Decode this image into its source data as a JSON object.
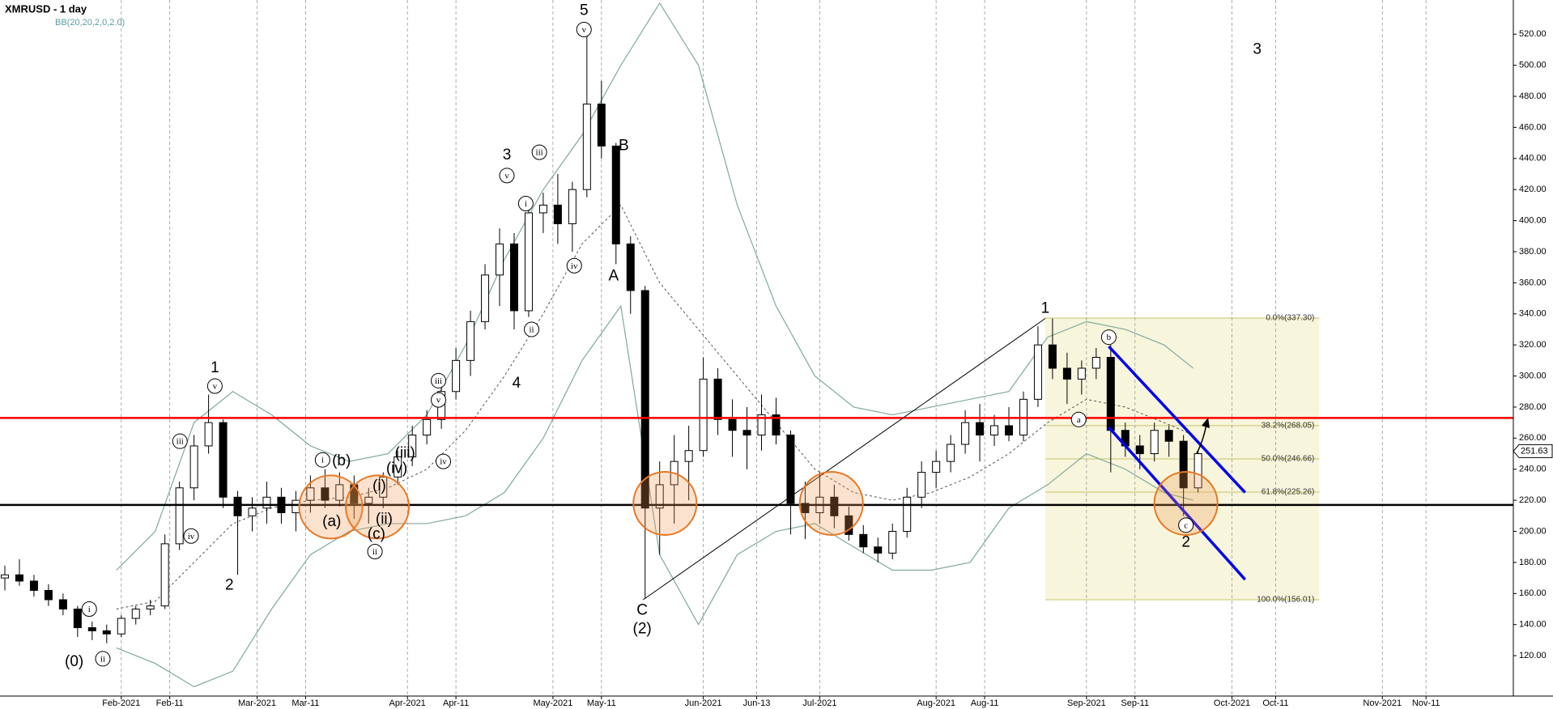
{
  "chart_data": {
    "type": "candlestick",
    "title": "XMRUSD - 1 day",
    "indicator": "BB(20,20,2,0,2.0)",
    "xlim": [
      0,
      312
    ],
    "ylim": [
      94,
      542
    ],
    "xticks": [
      {
        "value": 25,
        "label": "Feb-2021"
      },
      {
        "value": 35,
        "label": "Feb-11"
      },
      {
        "value": 53,
        "label": "Mar-2021"
      },
      {
        "value": 63,
        "label": "Mar-11"
      },
      {
        "value": 84,
        "label": "Apr-2021"
      },
      {
        "value": 94,
        "label": "Apr-11"
      },
      {
        "value": 114,
        "label": "May-2021"
      },
      {
        "value": 124,
        "label": "May-11"
      },
      {
        "value": 145,
        "label": "Jun-2021"
      },
      {
        "value": 156,
        "label": "Jun-13"
      },
      {
        "value": 169,
        "label": "Jul-2021"
      },
      {
        "value": 193,
        "label": "Aug-2021"
      },
      {
        "value": 203,
        "label": "Aug-11"
      },
      {
        "value": 224,
        "label": "Sep-2021"
      },
      {
        "value": 234,
        "label": "Sep-11"
      },
      {
        "value": 254,
        "label": "Oct-2021"
      },
      {
        "value": 263,
        "label": "Oct-11"
      },
      {
        "value": 285,
        "label": "Nov-2021"
      },
      {
        "value": 294,
        "label": "Nov-11"
      }
    ],
    "yticks": [
      {
        "value": 120,
        "label": "120.00"
      },
      {
        "value": 140,
        "label": "140.00"
      },
      {
        "value": 160,
        "label": "160.00"
      },
      {
        "value": 180,
        "label": "180.00"
      },
      {
        "value": 200,
        "label": "200.00"
      },
      {
        "value": 220,
        "label": "220.00"
      },
      {
        "value": 240,
        "label": "240.00"
      },
      {
        "value": 260,
        "label": "260.00"
      },
      {
        "value": 280,
        "label": "280.00"
      },
      {
        "value": 300,
        "label": "300.00"
      },
      {
        "value": 320,
        "label": "320.00"
      },
      {
        "value": 340,
        "label": "340.00"
      },
      {
        "value": 360,
        "label": "360.00"
      },
      {
        "value": 380,
        "label": "380.00"
      },
      {
        "value": 400,
        "label": "400.00"
      },
      {
        "value": 420,
        "label": "420.00"
      },
      {
        "value": 440,
        "label": "440.00"
      },
      {
        "value": 460,
        "label": "460.00"
      },
      {
        "value": 480,
        "label": "480.00"
      },
      {
        "value": 500,
        "label": "500.00"
      },
      {
        "value": 520,
        "label": "520.00"
      }
    ],
    "grid": true,
    "last_price": 251.63,
    "candles": {
      "up_color": "#ffffff",
      "down_color": "#000000",
      "x": [
        1,
        4,
        7,
        10,
        13,
        16,
        19,
        22,
        25,
        28,
        31,
        34,
        37,
        40,
        43,
        46,
        49,
        52,
        55,
        58,
        61,
        64,
        67,
        70,
        73,
        76,
        79,
        82,
        85,
        88,
        91,
        94,
        97,
        100,
        103,
        106,
        109,
        112,
        115,
        118,
        121,
        124,
        127,
        130,
        133,
        136,
        139,
        142,
        145,
        148,
        151,
        154,
        157,
        160,
        163,
        166,
        169,
        172,
        175,
        178,
        181,
        184,
        187,
        190,
        193,
        196,
        199,
        202,
        205,
        208,
        211,
        214,
        217,
        220,
        223,
        226,
        229,
        232,
        235,
        238,
        241,
        244,
        247
      ],
      "open": [
        170,
        172,
        168,
        162,
        156,
        150,
        138,
        136,
        134,
        144,
        150,
        152,
        192,
        228,
        255,
        270,
        222,
        210,
        215,
        222,
        212,
        220,
        228,
        220,
        230,
        218,
        222,
        235,
        248,
        262,
        272,
        290,
        310,
        335,
        365,
        385,
        342,
        405,
        410,
        398,
        420,
        475,
        448,
        385,
        355,
        215,
        230,
        245,
        252,
        298,
        272,
        265,
        262,
        275,
        262,
        218,
        212,
        222,
        210,
        198,
        190,
        186,
        200,
        222,
        238,
        245,
        256,
        270,
        262,
        268,
        262,
        285,
        320,
        305,
        298,
        305,
        312,
        265,
        255,
        250,
        265,
        258,
        228
      ],
      "high": [
        178,
        182,
        172,
        166,
        160,
        152,
        142,
        140,
        146,
        152,
        156,
        198,
        232,
        262,
        288,
        272,
        226,
        222,
        232,
        228,
        226,
        236,
        240,
        238,
        236,
        228,
        238,
        252,
        268,
        278,
        295,
        318,
        342,
        372,
        395,
        392,
        412,
        418,
        430,
        425,
        520,
        490,
        450,
        390,
        358,
        245,
        262,
        268,
        312,
        305,
        285,
        280,
        288,
        286,
        265,
        232,
        238,
        230,
        216,
        204,
        196,
        205,
        228,
        245,
        252,
        262,
        278,
        282,
        275,
        280,
        290,
        332,
        337,
        315,
        310,
        318,
        320,
        270,
        262,
        270,
        268,
        262,
        252
      ],
      "low": [
        162,
        165,
        158,
        152,
        146,
        132,
        130,
        128,
        132,
        140,
        146,
        150,
        188,
        220,
        250,
        215,
        172,
        200,
        205,
        205,
        200,
        212,
        215,
        216,
        208,
        205,
        215,
        230,
        242,
        256,
        266,
        285,
        300,
        330,
        345,
        330,
        338,
        392,
        385,
        380,
        415,
        440,
        372,
        340,
        157,
        185,
        205,
        220,
        248,
        262,
        248,
        240,
        252,
        256,
        198,
        195,
        205,
        202,
        194,
        186,
        180,
        182,
        196,
        215,
        228,
        238,
        250,
        245,
        255,
        258,
        258,
        280,
        298,
        282,
        288,
        298,
        238,
        248,
        240,
        245,
        248,
        210,
        225
      ],
      "close": [
        172,
        168,
        162,
        156,
        150,
        138,
        136,
        134,
        144,
        150,
        152,
        192,
        228,
        255,
        270,
        222,
        210,
        215,
        222,
        212,
        220,
        228,
        220,
        230,
        218,
        222,
        235,
        248,
        262,
        272,
        290,
        310,
        335,
        365,
        385,
        342,
        405,
        410,
        398,
        420,
        475,
        448,
        385,
        355,
        215,
        230,
        245,
        252,
        298,
        272,
        265,
        262,
        275,
        262,
        218,
        212,
        222,
        210,
        198,
        190,
        186,
        200,
        222,
        238,
        245,
        256,
        270,
        262,
        268,
        262,
        285,
        320,
        305,
        298,
        305,
        312,
        265,
        255,
        250,
        265,
        258,
        228,
        250
      ]
    },
    "bands": {
      "color": "#7fa99b",
      "x": [
        24,
        32,
        40,
        48,
        56,
        64,
        72,
        80,
        88,
        96,
        104,
        112,
        120,
        128,
        136,
        144,
        152,
        160,
        168,
        176,
        184,
        192,
        200,
        208,
        216,
        224,
        232,
        240,
        246
      ],
      "upper": [
        175,
        200,
        270,
        290,
        275,
        255,
        245,
        250,
        275,
        320,
        375,
        420,
        455,
        500,
        540,
        500,
        410,
        345,
        300,
        280,
        275,
        280,
        285,
        290,
        325,
        335,
        330,
        320,
        305
      ],
      "middle": [
        150,
        155,
        180,
        205,
        215,
        220,
        222,
        228,
        240,
        265,
        300,
        340,
        385,
        410,
        360,
        330,
        300,
        270,
        240,
        225,
        220,
        225,
        235,
        250,
        270,
        285,
        280,
        270,
        262
      ],
      "lower": [
        125,
        115,
        100,
        110,
        150,
        185,
        200,
        205,
        205,
        210,
        225,
        260,
        310,
        345,
        185,
        140,
        185,
        200,
        205,
        190,
        175,
        175,
        180,
        215,
        230,
        250,
        240,
        225,
        220
      ]
    },
    "levels": [
      {
        "value": 273,
        "color": "#ff0000"
      },
      {
        "value": 217,
        "color": "#000000"
      }
    ],
    "fib": {
      "x": [
        215.5,
        272
      ],
      "color": "#c8c46a",
      "levels": [
        {
          "value": 337.3,
          "label": "0.0%(337.30)"
        },
        {
          "value": 268.05,
          "label": "38.2%(268.05)"
        },
        {
          "value": 246.66,
          "label": "50.0%(246.66)"
        },
        {
          "value": 225.26,
          "label": "61.8%(225.26)"
        },
        {
          "value": 156.01,
          "label": "100.0%(156.01)"
        }
      ]
    },
    "lines": [
      {
        "color": "#000000",
        "x": [
          132.6,
          215.5
        ],
        "y": [
          156,
          337
        ]
      },
      {
        "color": "#0000ee",
        "x": [
          228.6,
          256.7
        ],
        "y": [
          319,
          225
        ]
      },
      {
        "color": "#0000ee",
        "x": [
          228.6,
          256.7
        ],
        "y": [
          267,
          169
        ]
      }
    ],
    "highlights": [
      {
        "x": 68.2,
        "y": 215.7
      },
      {
        "x": 77.8,
        "y": 215.7
      },
      {
        "x": 137.1,
        "y": 218
      },
      {
        "x": 171.4,
        "y": 218
      },
      {
        "x": 244.5,
        "y": 218
      }
    ],
    "annotations": [
      {
        "text": "(0)",
        "x": 15.3,
        "y": 116,
        "circled": false
      },
      {
        "text": "i",
        "x": 18.4,
        "y": 150,
        "circled": true
      },
      {
        "text": "ii",
        "x": 21.2,
        "y": 118,
        "circled": true
      },
      {
        "text": "iii",
        "x": 37.1,
        "y": 258,
        "circled": true
      },
      {
        "text": "iv",
        "x": 39.4,
        "y": 197,
        "circled": true
      },
      {
        "text": "1",
        "x": 44.3,
        "y": 305,
        "circled": false
      },
      {
        "text": "v",
        "x": 44.3,
        "y": 293.5,
        "circled": true
      },
      {
        "text": "2",
        "x": 47.3,
        "y": 165,
        "circled": false
      },
      {
        "text": "i",
        "x": 66.5,
        "y": 246,
        "circled": true
      },
      {
        "text": "(b)",
        "x": 70.4,
        "y": 245,
        "circled": false
      },
      {
        "text": "(a)",
        "x": 68.4,
        "y": 206,
        "circled": false
      },
      {
        "text": "(i)",
        "x": 78.2,
        "y": 229,
        "circled": false
      },
      {
        "text": "(ii)",
        "x": 79.2,
        "y": 207.5,
        "circled": false
      },
      {
        "text": "(c)",
        "x": 77.6,
        "y": 198,
        "circled": false
      },
      {
        "text": "ii",
        "x": 77.3,
        "y": 187,
        "circled": true
      },
      {
        "text": "(iii)",
        "x": 83.5,
        "y": 250,
        "circled": false
      },
      {
        "text": "(iv)",
        "x": 81.8,
        "y": 240,
        "circled": false
      },
      {
        "text": "iii",
        "x": 90.4,
        "y": 297,
        "circled": true
      },
      {
        "text": "v",
        "x": 90.4,
        "y": 284.6,
        "circled": true
      },
      {
        "text": "iv",
        "x": 91.4,
        "y": 245,
        "circled": true
      },
      {
        "text": "3",
        "x": 104.5,
        "y": 442,
        "circled": false
      },
      {
        "text": "v",
        "x": 104.5,
        "y": 429,
        "circled": true
      },
      {
        "text": "4",
        "x": 106.5,
        "y": 295,
        "circled": false
      },
      {
        "text": "i",
        "x": 108.4,
        "y": 411,
        "circled": true
      },
      {
        "text": "ii",
        "x": 109.6,
        "y": 330,
        "circled": true
      },
      {
        "text": "iii",
        "x": 111.2,
        "y": 444,
        "circled": true
      },
      {
        "text": "iv",
        "x": 118.4,
        "y": 371,
        "circled": true
      },
      {
        "text": "5",
        "x": 120.4,
        "y": 535,
        "circled": false
      },
      {
        "text": "v",
        "x": 120.4,
        "y": 523,
        "circled": true
      },
      {
        "text": "A",
        "x": 126.5,
        "y": 364,
        "circled": false
      },
      {
        "text": "B",
        "x": 128.6,
        "y": 448,
        "circled": false
      },
      {
        "text": "C",
        "x": 132.4,
        "y": 149,
        "circled": false
      },
      {
        "text": "(2)",
        "x": 132.4,
        "y": 137,
        "circled": false
      },
      {
        "text": "1",
        "x": 215.5,
        "y": 343.3,
        "circled": false
      },
      {
        "text": "a",
        "x": 222.4,
        "y": 272,
        "circled": true
      },
      {
        "text": "b",
        "x": 228.6,
        "y": 325,
        "circled": true
      },
      {
        "text": "c",
        "x": 244.5,
        "y": 204,
        "circled": true
      },
      {
        "text": "2",
        "x": 244.5,
        "y": 192.7,
        "circled": false
      },
      {
        "text": "3",
        "x": 259.2,
        "y": 510,
        "circled": false
      }
    ]
  }
}
